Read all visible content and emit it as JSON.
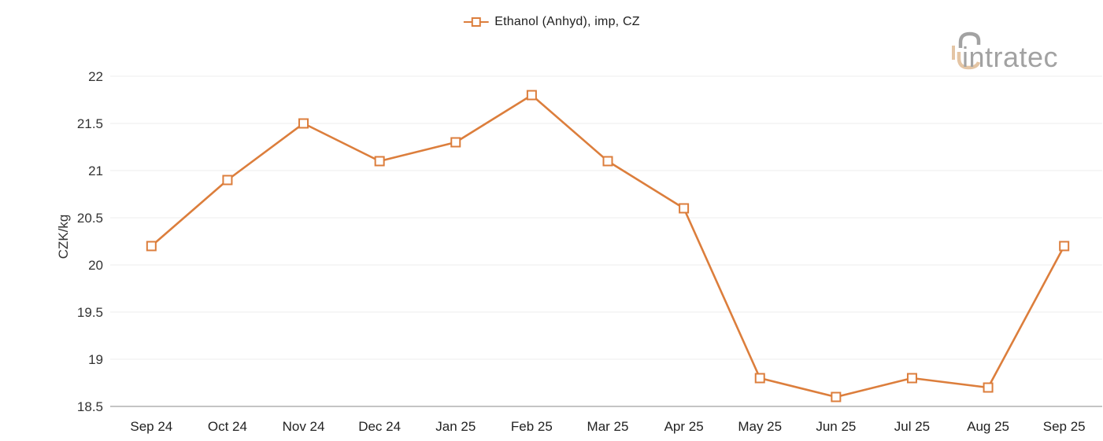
{
  "logo": {
    "text": "intratec",
    "text_color": "#9e9e9e",
    "accent_color": "#e3c2a0"
  },
  "chart_data": {
    "type": "line",
    "x": [
      "Sep 24",
      "Oct 24",
      "Nov 24",
      "Dec 24",
      "Jan 25",
      "Feb 25",
      "Mar 25",
      "Apr 25",
      "May 25",
      "Jun 25",
      "Jul 25",
      "Aug 25",
      "Sep 25"
    ],
    "series": [
      {
        "name": "Ethanol (Anhyd), imp, CZ",
        "values": [
          20.2,
          20.9,
          21.5,
          21.1,
          21.3,
          21.8,
          21.1,
          20.6,
          18.8,
          18.6,
          18.8,
          18.7,
          20.2
        ]
      }
    ],
    "xlabel": "",
    "ylabel": "CZK/kg",
    "ylim": [
      18.5,
      22
    ],
    "yticks": [
      18.5,
      19,
      19.5,
      20,
      20.5,
      21,
      21.5,
      22
    ],
    "grid": true,
    "legend_position": "top-center",
    "line_color": "#dc7e3c",
    "marker": "open-square",
    "marker_fill": "#ffffff",
    "grid_color": "#ededed",
    "axis_line_color": "#b0b0b0",
    "tick_label_color": "#333333"
  }
}
